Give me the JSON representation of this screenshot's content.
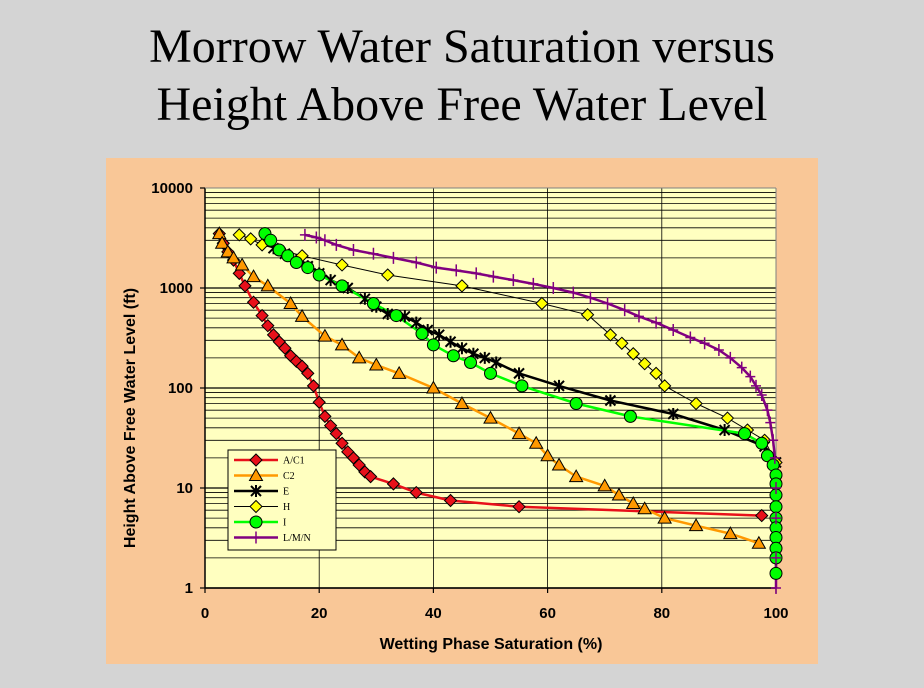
{
  "slide": {
    "title_line1": "Morrow Water Saturation versus",
    "title_line2": "Height Above Free Water Level"
  },
  "chart_data": {
    "type": "scatter",
    "title": "Morrow Water Saturation versus Height Above Free Water Level",
    "xlabel": "Wetting Phase Saturation (%)",
    "ylabel": "Height Above Free Water Level (ft)",
    "xlim": [
      0,
      100
    ],
    "ylim": [
      1,
      10000
    ],
    "yscale": "log",
    "x_ticks": [
      "0",
      "20",
      "40",
      "60",
      "80",
      "100"
    ],
    "y_ticks": [
      "1",
      "10",
      "100",
      "1000",
      "10000"
    ],
    "legend_position": "bottom-left",
    "series": [
      {
        "name": "A/C1",
        "color": "#e8101a",
        "marker": "diamond",
        "marker_fill": "#e8101a",
        "x": [
          2.5,
          3.2,
          4,
          5,
          6,
          7,
          8.5,
          10,
          11,
          12,
          13,
          14,
          15,
          16,
          17,
          18,
          19,
          20,
          21,
          22,
          23,
          24,
          25,
          26,
          27,
          28,
          29,
          33,
          37,
          43,
          55,
          97.5
        ],
        "y": [
          3500,
          2800,
          2300,
          1900,
          1400,
          1050,
          720,
          530,
          420,
          340,
          290,
          250,
          210,
          185,
          165,
          140,
          105,
          72,
          52,
          42,
          35,
          28,
          23,
          20,
          17,
          14.5,
          13,
          11,
          9,
          7.5,
          6.5,
          5.3
        ]
      },
      {
        "name": "C2",
        "color": "#ff9900",
        "marker": "triangle",
        "marker_fill": "#ff9900",
        "x": [
          2.5,
          3,
          4,
          5,
          6.5,
          8.5,
          11,
          15,
          17,
          21,
          24,
          27,
          30,
          34,
          40,
          45,
          50,
          55,
          58,
          60,
          62,
          65,
          70,
          72.5,
          75,
          77,
          80.5,
          86,
          92,
          97
        ],
        "y": [
          3500,
          2800,
          2300,
          2000,
          1700,
          1300,
          1050,
          700,
          520,
          330,
          270,
          200,
          170,
          140,
          100,
          70,
          50,
          35,
          28,
          21,
          17,
          13,
          10.5,
          8.5,
          7,
          6.2,
          5,
          4.2,
          3.5,
          2.8
        ]
      },
      {
        "name": "E",
        "color": "#000000",
        "marker": "star",
        "marker_fill": "#000000",
        "x": [
          12,
          14,
          16,
          18,
          20,
          22,
          25,
          28,
          30,
          32,
          35,
          37,
          39,
          41,
          43,
          45,
          47,
          49,
          51,
          55,
          62,
          71,
          82,
          91,
          98,
          100
        ],
        "y": [
          2500,
          2200,
          1900,
          1650,
          1400,
          1200,
          1000,
          780,
          650,
          550,
          520,
          450,
          380,
          340,
          290,
          250,
          220,
          200,
          180,
          140,
          105,
          75,
          55,
          38,
          26,
          18
        ]
      },
      {
        "name": "H",
        "color": "#000000",
        "marker": "diamond",
        "marker_fill": "#ffff00",
        "x": [
          6,
          8,
          10,
          17,
          24,
          32,
          45,
          59,
          67,
          71,
          73,
          75,
          77,
          79,
          80.5,
          86,
          91.5,
          95,
          98,
          100
        ],
        "y": [
          3400,
          3100,
          2700,
          2100,
          1700,
          1350,
          1050,
          700,
          540,
          340,
          280,
          220,
          175,
          140,
          105,
          70,
          50,
          38,
          30,
          18
        ]
      },
      {
        "name": "I",
        "color": "#00ff00",
        "marker": "circle",
        "marker_fill": "#00ff00",
        "x": [
          10.5,
          11.5,
          13,
          14.5,
          16,
          18,
          20,
          24,
          29.5,
          33.5,
          38,
          40,
          43.5,
          46.5,
          50,
          55.5,
          65,
          74.5,
          94.5,
          97.5,
          98.5,
          99.5,
          100,
          100,
          100,
          100,
          100,
          100,
          100,
          100,
          100,
          100
        ],
        "y": [
          3500,
          3000,
          2400,
          2100,
          1800,
          1600,
          1350,
          1050,
          700,
          530,
          350,
          270,
          210,
          180,
          140,
          105,
          70,
          52,
          35,
          28,
          21,
          17,
          13.5,
          11,
          8.5,
          6.5,
          5,
          4,
          3.2,
          2.5,
          2,
          1.4
        ]
      },
      {
        "name": "L/M/N",
        "color": "#800080",
        "marker": "plus",
        "marker_fill": "#800080",
        "x": [
          17.5,
          19.5,
          21,
          23,
          26,
          29.5,
          33,
          37,
          40.5,
          44,
          47.5,
          50.5,
          54,
          57.5,
          61,
          64.5,
          67.5,
          70.5,
          73.5,
          76,
          79,
          82,
          85,
          87.5,
          90,
          92,
          94,
          95.5,
          96.5,
          97.5,
          98.5,
          99,
          99.5,
          99.8,
          100,
          100,
          100,
          100
        ],
        "y": [
          3400,
          3200,
          3000,
          2700,
          2400,
          2200,
          2000,
          1800,
          1600,
          1500,
          1400,
          1300,
          1200,
          1100,
          1000,
          900,
          800,
          700,
          600,
          520,
          450,
          380,
          320,
          280,
          240,
          200,
          160,
          130,
          105,
          85,
          60,
          45,
          30,
          20,
          10,
          5,
          2,
          1
        ]
      }
    ]
  }
}
